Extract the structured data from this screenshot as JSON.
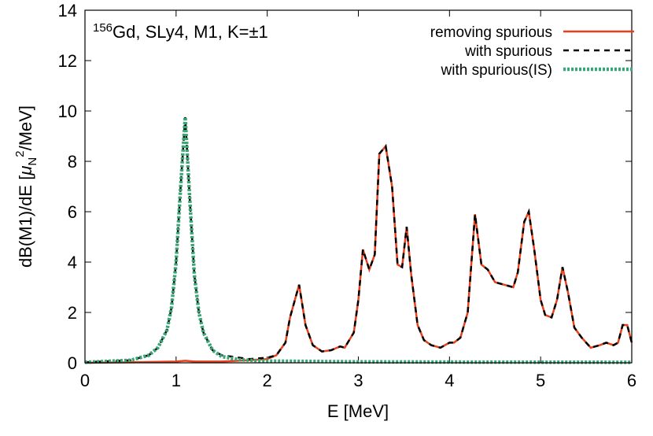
{
  "chart_data": {
    "type": "line",
    "annotation": {
      "superscript": "156",
      "text": "Gd, SLy4, M1, K=±1"
    },
    "x_label": "E [MeV]",
    "y_label": {
      "main": "dB(M1)/dE  [",
      "mu": "μ",
      "sub": "N",
      "sup": "2",
      "tail": "/MeV]"
    },
    "xlim": [
      0,
      6
    ],
    "xticks": [
      0,
      1,
      2,
      3,
      4,
      5,
      6
    ],
    "ylim": [
      0,
      14
    ],
    "yticks": [
      0,
      2,
      4,
      6,
      8,
      10,
      12,
      14
    ],
    "legend": "top-right",
    "series": [
      {
        "name": "removing spurious",
        "color": "#e8401c",
        "style": "solid",
        "x": [
          0,
          0.5,
          1.0,
          1.1,
          1.2,
          1.5,
          1.8,
          2.0,
          2.1,
          2.2,
          2.25,
          2.35,
          2.42,
          2.5,
          2.6,
          2.7,
          2.8,
          2.85,
          2.95,
          3.0,
          3.05,
          3.12,
          3.18,
          3.23,
          3.3,
          3.37,
          3.43,
          3.48,
          3.53,
          3.58,
          3.65,
          3.72,
          3.8,
          3.9,
          4.0,
          4.05,
          4.12,
          4.2,
          4.28,
          4.35,
          4.42,
          4.5,
          4.6,
          4.7,
          4.75,
          4.82,
          4.87,
          4.93,
          5.0,
          5.05,
          5.12,
          5.18,
          5.24,
          5.3,
          5.37,
          5.45,
          5.55,
          5.65,
          5.72,
          5.8,
          5.85,
          5.9,
          5.95,
          6.0
        ],
        "values": [
          0.0,
          0.02,
          0.05,
          0.08,
          0.05,
          0.05,
          0.1,
          0.15,
          0.3,
          0.8,
          1.8,
          3.1,
          1.5,
          0.7,
          0.45,
          0.5,
          0.65,
          0.6,
          1.2,
          2.5,
          4.5,
          3.7,
          4.3,
          8.3,
          8.6,
          7.0,
          3.9,
          3.8,
          5.4,
          3.5,
          1.5,
          0.9,
          0.7,
          0.6,
          0.8,
          0.8,
          1.0,
          2.0,
          5.9,
          3.9,
          3.7,
          3.2,
          3.1,
          3.0,
          3.6,
          5.6,
          6.0,
          4.5,
          2.5,
          1.9,
          1.8,
          2.5,
          3.8,
          2.8,
          1.4,
          1.0,
          0.6,
          0.7,
          0.8,
          0.7,
          0.8,
          1.5,
          1.5,
          0.8
        ]
      },
      {
        "name": "with spurious",
        "color": "#000000",
        "style": "dashed",
        "x": [
          0,
          0.5,
          0.7,
          0.8,
          0.9,
          0.95,
          1.0,
          1.05,
          1.1,
          1.15,
          1.2,
          1.25,
          1.3,
          1.4,
          1.5,
          1.8,
          2.0,
          2.1,
          2.2,
          2.25,
          2.35,
          2.42,
          2.5,
          2.6,
          2.7,
          2.8,
          2.85,
          2.95,
          3.0,
          3.05,
          3.12,
          3.18,
          3.23,
          3.3,
          3.37,
          3.43,
          3.48,
          3.53,
          3.58,
          3.65,
          3.72,
          3.8,
          3.9,
          4.0,
          4.05,
          4.12,
          4.2,
          4.28,
          4.35,
          4.42,
          4.5,
          4.6,
          4.7,
          4.75,
          4.82,
          4.87,
          4.93,
          5.0,
          5.05,
          5.12,
          5.18,
          5.24,
          5.3,
          5.37,
          5.45,
          5.55,
          5.65,
          5.72,
          5.8,
          5.85,
          5.9,
          5.95,
          6.0
        ],
        "values": [
          0.02,
          0.1,
          0.3,
          0.6,
          1.3,
          2.2,
          4.0,
          7.0,
          9.75,
          6.5,
          3.5,
          2.0,
          1.2,
          0.5,
          0.3,
          0.15,
          0.2,
          0.3,
          0.8,
          1.8,
          3.1,
          1.5,
          0.7,
          0.45,
          0.5,
          0.65,
          0.6,
          1.2,
          2.5,
          4.5,
          3.7,
          4.3,
          8.3,
          8.6,
          7.0,
          3.9,
          3.8,
          5.4,
          3.5,
          1.5,
          0.9,
          0.7,
          0.6,
          0.8,
          0.8,
          1.0,
          2.0,
          5.9,
          3.9,
          3.7,
          3.2,
          3.1,
          3.0,
          3.6,
          5.6,
          6.0,
          4.5,
          2.5,
          1.9,
          1.8,
          2.5,
          3.8,
          2.8,
          1.4,
          1.0,
          0.6,
          0.7,
          0.8,
          0.7,
          0.8,
          1.5,
          1.5,
          0.8
        ]
      },
      {
        "name": "with spurious(IS)",
        "color": "#3aa676",
        "style": "dotted",
        "x": [
          0,
          0.5,
          0.7,
          0.8,
          0.9,
          0.95,
          1.0,
          1.05,
          1.1,
          1.15,
          1.2,
          1.25,
          1.3,
          1.4,
          1.5,
          1.7,
          2.0,
          3.0,
          4.0,
          6.0
        ],
        "values": [
          0.02,
          0.1,
          0.3,
          0.6,
          1.3,
          2.2,
          4.0,
          7.0,
          9.75,
          6.5,
          3.5,
          2.0,
          1.2,
          0.5,
          0.25,
          0.12,
          0.07,
          0.04,
          0.03,
          0.02
        ]
      }
    ]
  }
}
